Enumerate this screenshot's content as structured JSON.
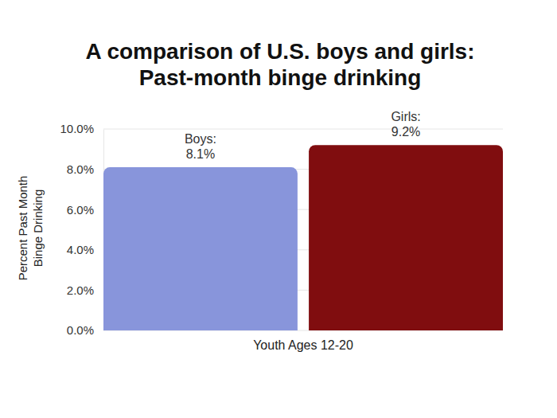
{
  "chart_data": {
    "type": "bar",
    "title": "A comparison of U.S. boys and girls:\nPast-month binge drinking",
    "x_label": "Youth Ages 12-20",
    "y_label": "Percent Past Month\nBinge Drinking",
    "categories": [
      "Boys:",
      "Girls:"
    ],
    "values": [
      8.1,
      9.2
    ],
    "value_labels": [
      "8.1%",
      "9.2%"
    ],
    "colors": [
      "#8895db",
      "#800d0f"
    ],
    "ylim": [
      0,
      10
    ],
    "yticks": [
      {
        "value": 0,
        "label": "0.0%"
      },
      {
        "value": 2,
        "label": "2.0%"
      },
      {
        "value": 4,
        "label": "4.0%"
      },
      {
        "value": 6,
        "label": "6.0%"
      },
      {
        "value": 8,
        "label": "8.0%"
      },
      {
        "value": 10,
        "label": "10.0%"
      }
    ],
    "grid": true,
    "data_labels": true,
    "tick_labels": "y"
  }
}
